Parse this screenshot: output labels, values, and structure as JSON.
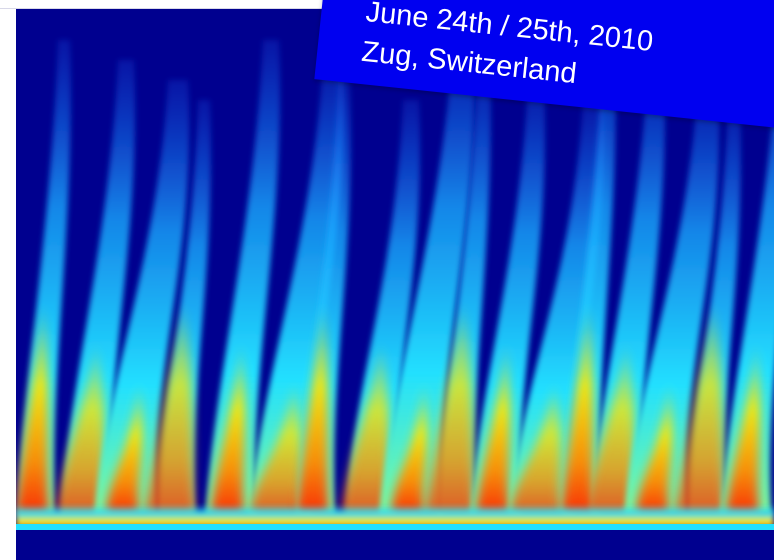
{
  "caption": {
    "date_line": "June 24th / 25th, 2010",
    "location_line": "Zug, Switzerland"
  },
  "colors": {
    "background_deep": "#00008f",
    "banner": "#0000f0",
    "low": "#1e6bff",
    "mid": "#22e0ff",
    "high": "#ffe600",
    "peak": "#ff2200"
  }
}
